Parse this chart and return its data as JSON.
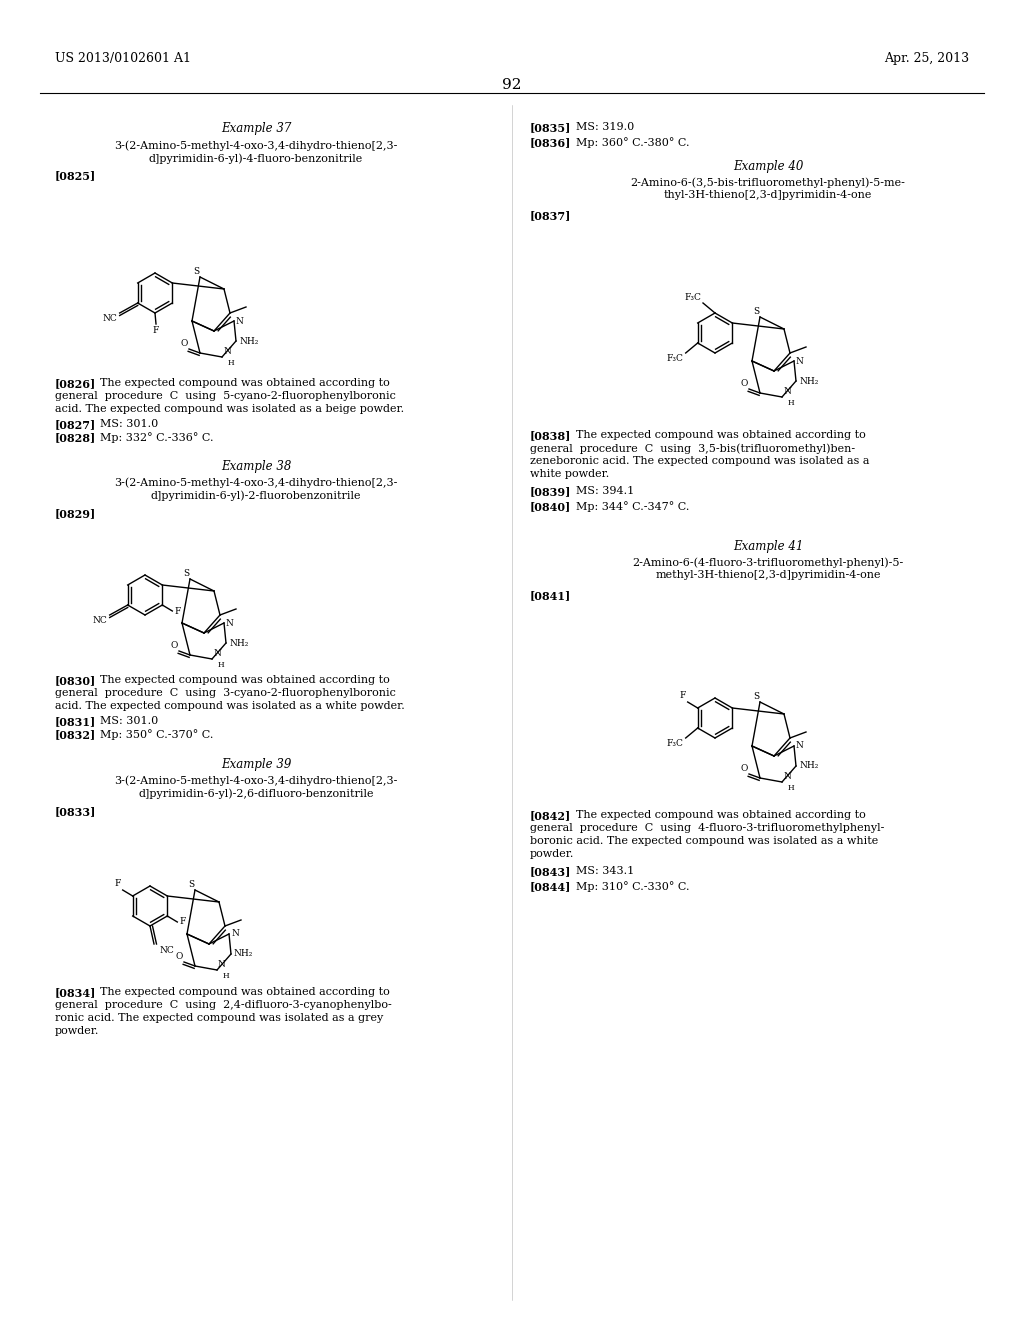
{
  "background_color": "#ffffff",
  "header_left": "US 2013/0102601 A1",
  "header_right": "Apr. 25, 2013",
  "page_number": "92",
  "font_family": "serif",
  "body_fontsize": 8.0,
  "title_fontsize": 8.5,
  "label_fontsize": 6.5
}
